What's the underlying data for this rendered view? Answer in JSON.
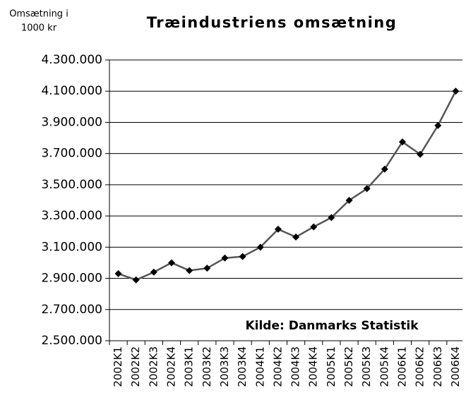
{
  "chart_data": {
    "type": "line",
    "title": "Træindustriens omsætning",
    "ylabel": [
      "Omsætning i",
      "1000 kr"
    ],
    "annotation": "Kilde: Danmarks Statistik",
    "categories": [
      "2002K1",
      "2002K2",
      "2002K3",
      "2002K4",
      "2003K1",
      "2003K2",
      "2003K3",
      "2003K4",
      "2004K1",
      "2004K2",
      "2004K3",
      "2004K4",
      "2005K1",
      "2005K2",
      "2005K3",
      "2005K4",
      "2006K1",
      "2006K2",
      "2006K3",
      "2006K4"
    ],
    "values": [
      2930000,
      2890000,
      2940000,
      3000000,
      2950000,
      2965000,
      3030000,
      3040000,
      3100000,
      3215000,
      3165000,
      3230000,
      3290000,
      3400000,
      3475000,
      3600000,
      3775000,
      3695000,
      3880000,
      4100000
    ],
    "color": "#555555",
    "marker_color": "#000000",
    "ylim": [
      2500000,
      4300000
    ],
    "yticks": [
      {
        "value": 2500000,
        "label": "2.500.000"
      },
      {
        "value": 2700000,
        "label": "2.700.000"
      },
      {
        "value": 2900000,
        "label": "2.900.000"
      },
      {
        "value": 3100000,
        "label": "3.100.000"
      },
      {
        "value": 3300000,
        "label": "3.300.000"
      },
      {
        "value": 3500000,
        "label": "3.500.000"
      },
      {
        "value": 3700000,
        "label": "3.700.000"
      },
      {
        "value": 3900000,
        "label": "3.900.000"
      },
      {
        "value": 4100000,
        "label": "4.100.000"
      },
      {
        "value": 4300000,
        "label": "4.300.000"
      }
    ],
    "grid": true
  }
}
